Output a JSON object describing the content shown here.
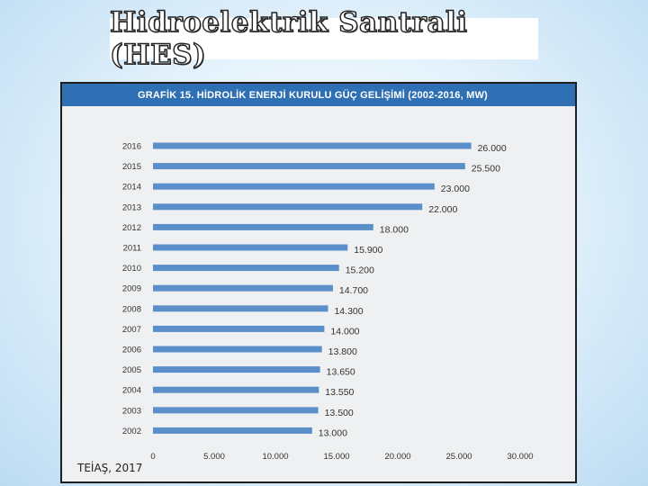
{
  "slide": {
    "title": "Hidroelektrik Santrali (HES)",
    "source": "TEİAŞ, 2017"
  },
  "chart_data": {
    "type": "bar",
    "orientation": "horizontal",
    "title": "GRAFİK 15. HİDROLİK ENERJİ KURULU GÜÇ GELİŞİMİ (2002-2016, MW)",
    "categories": [
      "2016",
      "2015",
      "2014",
      "2013",
      "2012",
      "2011",
      "2010",
      "2009",
      "2008",
      "2007",
      "2006",
      "2005",
      "2004",
      "2003",
      "2002"
    ],
    "values": [
      26000,
      25500,
      23000,
      22000,
      18000,
      15900,
      15200,
      14700,
      14300,
      14000,
      13800,
      13650,
      13550,
      13500,
      13000
    ],
    "value_labels": [
      "26.000",
      "25.500",
      "23.000",
      "22.000",
      "18.000",
      "15.900",
      "15.200",
      "14.700",
      "14.300",
      "14.000",
      "13.800",
      "13.650",
      "13.550",
      "13.500",
      "13.000"
    ],
    "xlim": [
      0,
      30000
    ],
    "x_ticks": [
      0,
      5000,
      10000,
      15000,
      20000,
      25000,
      30000
    ],
    "x_tick_labels": [
      "0",
      "5.000",
      "10.000",
      "15.000",
      "20.000",
      "25.000",
      "30.000"
    ],
    "bar_color": "#5b8fc9",
    "header_color": "#2f6fb4",
    "grid": false,
    "legend": "none"
  }
}
